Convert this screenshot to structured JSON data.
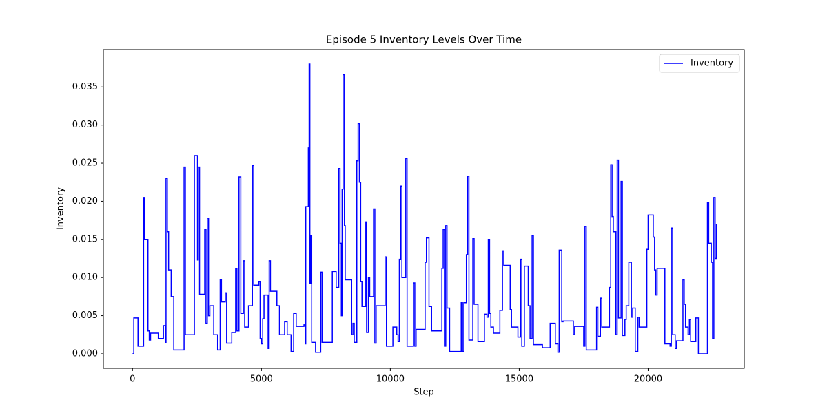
{
  "chart_data": {
    "type": "line",
    "title": "Episode 5 Inventory Levels Over Time",
    "x_label": "Step",
    "y_label": "Inventory",
    "drawstyle": "steps-post",
    "legend": "upper right",
    "grid": false,
    "xlim": [
      -1130,
      23730
    ],
    "xticks": [
      0,
      5000,
      10000,
      15000,
      20000
    ],
    "ylim": [
      -0.0019,
      0.0399
    ],
    "yticks": [
      {
        "value": 0,
        "label": "0.000"
      },
      {
        "value": 0.005,
        "label": "0.005"
      },
      {
        "value": 0.01,
        "label": "0.010"
      },
      {
        "value": 0.015,
        "label": "0.015"
      },
      {
        "value": 0.02,
        "label": "0.020"
      },
      {
        "value": 0.025,
        "label": "0.025"
      },
      {
        "value": 0.03,
        "label": "0.030"
      },
      {
        "value": 0.035,
        "label": "0.035"
      }
    ],
    "x": [
      0,
      50,
      213,
      430,
      470,
      600,
      650,
      700,
      1000,
      1200,
      1270,
      1300,
      1350,
      1400,
      1500,
      1600,
      2000,
      2050,
      2400,
      2520,
      2550,
      2600,
      2800,
      2850,
      2900,
      2950,
      3000,
      3150,
      3300,
      3400,
      3450,
      3600,
      3650,
      3850,
      4000,
      4050,
      4130,
      4200,
      4300,
      4350,
      4500,
      4650,
      4700,
      4900,
      4950,
      5000,
      5050,
      5100,
      5260,
      5300,
      5350,
      5600,
      5700,
      5900,
      6000,
      6150,
      6250,
      6350,
      6650,
      6700,
      6720,
      6820,
      6850,
      6880,
      6920,
      6950,
      7100,
      7300,
      7350,
      7750,
      7900,
      8000,
      8050,
      8100,
      8130,
      8170,
      8220,
      8250,
      8500,
      8550,
      8600,
      8700,
      8750,
      8800,
      8850,
      8900,
      9050,
      9080,
      9150,
      9200,
      9350,
      9400,
      9450,
      9800,
      9850,
      10100,
      10250,
      10300,
      10350,
      10400,
      10450,
      10600,
      10650,
      10900,
      10950,
      11000,
      11350,
      11400,
      11500,
      11600,
      12000,
      12050,
      12100,
      12150,
      12200,
      12300,
      12750,
      12800,
      12850,
      12950,
      13000,
      13050,
      13200,
      13250,
      13400,
      13650,
      13750,
      13800,
      13850,
      13900,
      14000,
      14250,
      14350,
      14400,
      14650,
      14700,
      14950,
      15050,
      15100,
      15200,
      15350,
      15420,
      15500,
      15550,
      15900,
      16200,
      16400,
      16500,
      16550,
      16650,
      16700,
      17100,
      17150,
      17500,
      17550,
      17600,
      18000,
      18050,
      18150,
      18200,
      18500,
      18550,
      18600,
      18650,
      18750,
      18800,
      18850,
      18950,
      19000,
      19100,
      19150,
      19250,
      19350,
      19400,
      19500,
      19600,
      19650,
      19950,
      20000,
      20200,
      20250,
      20300,
      20350,
      20650,
      20850,
      20900,
      20950,
      21050,
      21100,
      21350,
      21400,
      21450,
      21550,
      21600,
      21650,
      21850,
      21950,
      22300,
      22350,
      22450,
      22500,
      22550,
      22600,
      22650
    ],
    "series": [
      {
        "name": "Inventory",
        "color": "#0000ff",
        "values": [
          0,
          0.0047,
          0.001,
          0.0205,
          0.015,
          0.003,
          0.0018,
          0.0027,
          0.002,
          0.0037,
          0.0015,
          0.023,
          0.016,
          0.011,
          0.0075,
          0.0005,
          0.0245,
          0.0025,
          0.026,
          0.0123,
          0.0245,
          0.0078,
          0.0163,
          0.004,
          0.0178,
          0.005,
          0.0063,
          0.0025,
          0.0005,
          0.0097,
          0.0068,
          0.008,
          0.0014,
          0.0028,
          0.0112,
          0.003,
          0.0232,
          0.0053,
          0.0122,
          0.0035,
          0.0063,
          0.0247,
          0.009,
          0.0095,
          0.002,
          0.0013,
          0.0046,
          0.0077,
          0.0007,
          0.0122,
          0.0082,
          0.0063,
          0.0025,
          0.0042,
          0.0025,
          0.0003,
          0.0053,
          0.0036,
          0.0038,
          0.0013,
          0.0193,
          0.027,
          0.038,
          0.0092,
          0.0155,
          0.0015,
          0.0002,
          0.0107,
          0.0015,
          0.0108,
          0.0087,
          0.0243,
          0.0145,
          0.005,
          0.0216,
          0.0366,
          0.0168,
          0.0097,
          0.0025,
          0.004,
          0.0015,
          0.0253,
          0.0302,
          0.0225,
          0.0095,
          0.0062,
          0.0173,
          0.0028,
          0.01,
          0.0075,
          0.019,
          0.0014,
          0.0063,
          0.0127,
          0.001,
          0.0035,
          0.0025,
          0.0016,
          0.0124,
          0.022,
          0.01,
          0.0256,
          0.001,
          0.0093,
          0.001,
          0.0032,
          0.012,
          0.0152,
          0.0062,
          0.003,
          0.0112,
          0.0163,
          0.001,
          0.0168,
          0.006,
          0.0003,
          0.0067,
          0.0003,
          0.0067,
          0.013,
          0.0233,
          0.0018,
          0.0151,
          0.0065,
          0.0016,
          0.0052,
          0.0048,
          0.015,
          0.0053,
          0.0035,
          0.0027,
          0.0057,
          0.0135,
          0.0116,
          0.0058,
          0.0035,
          0.0022,
          0.0124,
          0.001,
          0.0115,
          0.0063,
          0.002,
          0.0155,
          0.0012,
          0.0008,
          0.004,
          0.0013,
          0.0002,
          0.0136,
          0.0042,
          0.0043,
          0.0025,
          0.0036,
          0.001,
          0.0167,
          0.0005,
          0.0061,
          0.0023,
          0.0073,
          0.0035,
          0.0087,
          0.0248,
          0.018,
          0.016,
          0.0025,
          0.0254,
          0.0047,
          0.0226,
          0.0024,
          0.0045,
          0.0063,
          0.012,
          0.0048,
          0.006,
          0.0003,
          0.0048,
          0.0035,
          0.0137,
          0.0182,
          0.0153,
          0.011,
          0.0077,
          0.0112,
          0.0013,
          0.001,
          0.0165,
          0.0025,
          0.0007,
          0.0017,
          0.0097,
          0.0065,
          0.0035,
          0.0025,
          0.0045,
          0.0016,
          0.0047,
          0,
          0.0198,
          0.0145,
          0.012,
          0.002,
          0.0205,
          0.0125,
          0.017
        ]
      }
    ]
  }
}
